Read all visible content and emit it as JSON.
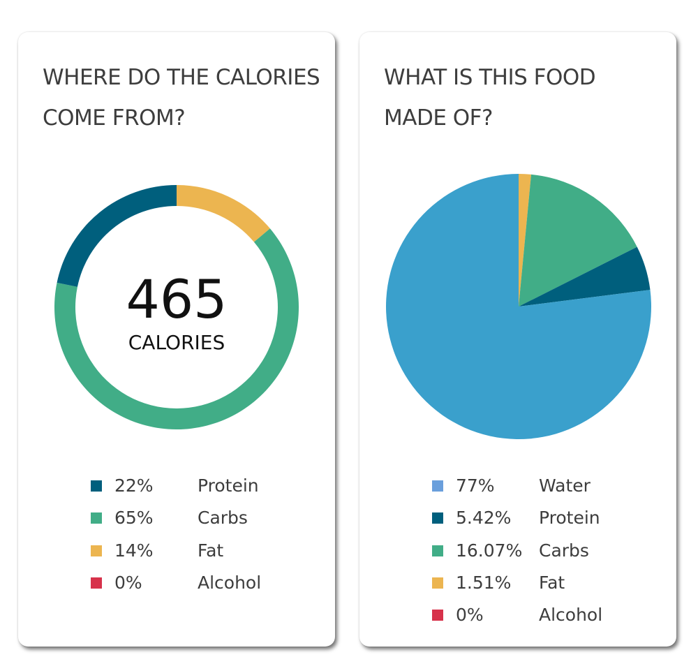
{
  "colors": {
    "water": "#3aa0cc",
    "protein": "#005f7d",
    "carbs": "#41ad87",
    "fat": "#ecb550",
    "alcohol": "#d7324b",
    "water_legend": "#6a9fdc"
  },
  "calories_card": {
    "title": "WHERE DO THE CALORIES COME FROM?",
    "center_value": "465",
    "center_label": "CALORIES",
    "legend": [
      {
        "pct": "22%",
        "name": "Protein",
        "color": "#005f7d"
      },
      {
        "pct": "65%",
        "name": "Carbs",
        "color": "#41ad87"
      },
      {
        "pct": "14%",
        "name": "Fat",
        "color": "#ecb550"
      },
      {
        "pct": "0%",
        "name": "Alcohol",
        "color": "#d7324b"
      }
    ]
  },
  "composition_card": {
    "title": "WHAT IS THIS FOOD MADE OF?",
    "legend": [
      {
        "pct": "77%",
        "name": "Water",
        "color": "#6a9fdc"
      },
      {
        "pct": "5.42%",
        "name": "Protein",
        "color": "#005f7d"
      },
      {
        "pct": "16.07%",
        "name": "Carbs",
        "color": "#41ad87"
      },
      {
        "pct": "1.51%",
        "name": "Fat",
        "color": "#ecb550"
      },
      {
        "pct": "0%",
        "name": "Alcohol",
        "color": "#d7324b"
      }
    ]
  },
  "chart_data": [
    {
      "type": "pie",
      "variant": "donut",
      "title": "WHERE DO THE CALORIES COME FROM?",
      "center_text": "465 CALORIES",
      "categories": [
        "Protein",
        "Carbs",
        "Fat",
        "Alcohol"
      ],
      "values": [
        22,
        65,
        14,
        0
      ],
      "colors": [
        "#005f7d",
        "#41ad87",
        "#ecb550",
        "#d7324b"
      ],
      "drawing_order": [
        "Fat",
        "Carbs",
        "Protein"
      ],
      "start": "top, clockwise",
      "legend_position": "bottom"
    },
    {
      "type": "pie",
      "title": "WHAT IS THIS FOOD MADE OF?",
      "categories": [
        "Water",
        "Protein",
        "Carbs",
        "Fat",
        "Alcohol"
      ],
      "values": [
        77,
        5.42,
        16.07,
        1.51,
        0
      ],
      "colors": [
        "#3aa0cc",
        "#005f7d",
        "#41ad87",
        "#ecb550",
        "#d7324b"
      ],
      "drawing_order": [
        "Fat",
        "Carbs",
        "Protein",
        "Water"
      ],
      "start": "top, clockwise",
      "legend_position": "bottom"
    }
  ]
}
